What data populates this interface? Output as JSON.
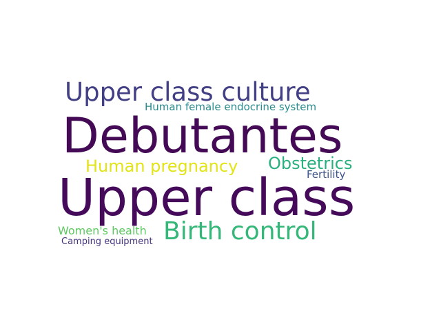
{
  "wordcloud": {
    "words": [
      {
        "text": "Upper class culture",
        "color": "#423f85"
      },
      {
        "text": "Human female endocrine system",
        "color": "#2a8c8c"
      },
      {
        "text": "Debutantes",
        "color": "#440a55"
      },
      {
        "text": "Human pregnancy",
        "color": "#e2e418"
      },
      {
        "text": "Obstetrics",
        "color": "#2ab07f"
      },
      {
        "text": "Fertility",
        "color": "#3b528b"
      },
      {
        "text": "Upper class",
        "color": "#450b5a"
      },
      {
        "text": "Birth control",
        "color": "#35b779"
      },
      {
        "text": "Women's health",
        "color": "#5ec962"
      },
      {
        "text": "Camping equipment",
        "color": "#46337e"
      }
    ]
  }
}
